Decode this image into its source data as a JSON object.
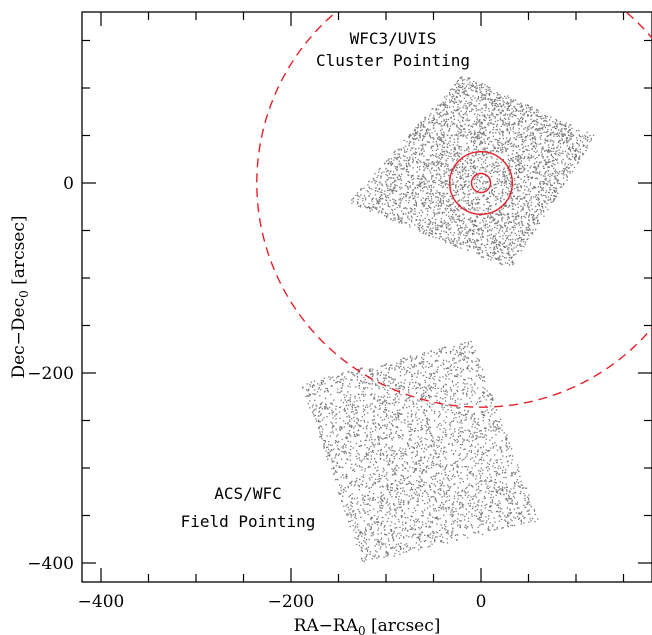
{
  "chart_data": {
    "type": "scatter",
    "title": "",
    "xlabel": {
      "main": "RA−RA",
      "sub": "0",
      "unit": " [arcsec]"
    },
    "ylabel": {
      "main": "Dec−Dec",
      "sub": "0",
      "unit": " [arcsec]"
    },
    "xlim": [
      -420,
      180
    ],
    "ylim": [
      -420,
      180
    ],
    "x_ticks": [
      -400,
      -200,
      0
    ],
    "x_tick_labels": [
      "−400",
      "−200",
      "0"
    ],
    "y_ticks": [
      -400,
      -200,
      0
    ],
    "y_tick_labels": [
      "−400",
      "−200",
      "0"
    ],
    "grid": false,
    "fields": [
      {
        "label_lines": [
          "WFC3/UVIS",
          "Cluster Pointing"
        ],
        "corners": [
          [
            -140,
            -20
          ],
          [
            -20,
            115
          ],
          [
            120,
            50
          ],
          [
            30,
            -90
          ]
        ],
        "point_color": "#7a7a7a"
      },
      {
        "label_lines": [
          "ACS/WFC",
          "Field Pointing"
        ],
        "corners": [
          [
            -190,
            -210
          ],
          [
            -10,
            -165
          ],
          [
            60,
            -355
          ],
          [
            -125,
            -400
          ]
        ],
        "point_color": "#7a7a7a"
      }
    ],
    "circles": [
      {
        "center": [
          0,
          0
        ],
        "radius": 10,
        "style": "solid",
        "color": "#e8202a"
      },
      {
        "center": [
          0,
          0
        ],
        "radius": 33,
        "style": "solid",
        "color": "#e8202a"
      },
      {
        "center": [
          0,
          0
        ],
        "radius": 236,
        "style": "dashed",
        "color": "#e8202a"
      }
    ]
  }
}
